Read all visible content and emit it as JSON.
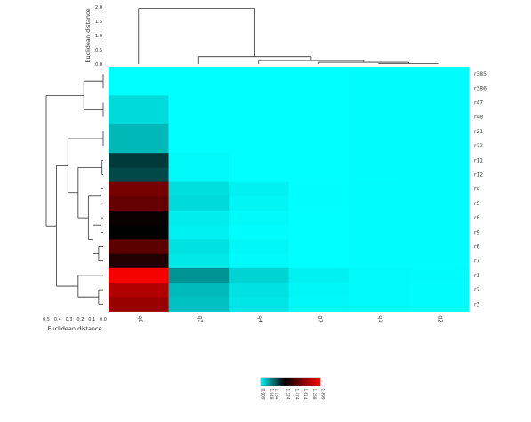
{
  "chart_data": {
    "type": "heatmap",
    "rows": [
      "r385",
      "r386",
      "r47",
      "r48",
      "r21",
      "r22",
      "r11",
      "r12",
      "r4",
      "r5",
      "r8",
      "r9",
      "r6",
      "r7",
      "r1",
      "r2",
      "r3"
    ],
    "columns": [
      "q8",
      "q3",
      "q4",
      "q7",
      "q1",
      "q2"
    ],
    "values": [
      [
        0.901,
        0.901,
        0.905,
        0.905,
        0.911,
        0.911
      ],
      [
        0.901,
        0.901,
        0.905,
        0.905,
        0.911,
        0.911
      ],
      [
        0.955,
        0.901,
        0.905,
        0.905,
        0.911,
        0.911
      ],
      [
        0.955,
        0.901,
        0.905,
        0.905,
        0.911,
        0.911
      ],
      [
        1.005,
        0.901,
        0.905,
        0.905,
        0.911,
        0.911
      ],
      [
        1.005,
        0.901,
        0.905,
        0.905,
        0.911,
        0.911
      ],
      [
        1.205,
        0.915,
        0.908,
        0.906,
        0.911,
        0.911
      ],
      [
        1.18,
        0.915,
        0.908,
        0.906,
        0.911,
        0.911
      ],
      [
        1.58,
        0.95,
        0.925,
        0.91,
        0.912,
        0.911
      ],
      [
        1.54,
        0.955,
        0.92,
        0.91,
        0.912,
        0.911
      ],
      [
        1.33,
        0.93,
        0.915,
        0.908,
        0.912,
        0.911
      ],
      [
        1.3,
        0.925,
        0.912,
        0.908,
        0.912,
        0.911
      ],
      [
        1.52,
        0.945,
        0.918,
        0.909,
        0.912,
        0.911
      ],
      [
        1.38,
        0.935,
        0.915,
        0.909,
        0.912,
        0.911
      ],
      [
        1.88,
        1.06,
        0.965,
        0.925,
        0.915,
        0.913
      ],
      [
        1.72,
        1.0,
        0.945,
        0.918,
        0.914,
        0.912
      ],
      [
        1.66,
        0.99,
        0.94,
        0.916,
        0.914,
        0.912
      ]
    ],
    "color_scale": {
      "low": "#00ffff",
      "mid": "#000000",
      "high": "#ff0000",
      "range": [
        0.909,
        1.899
      ],
      "breaks": [
        0.909,
        1.048,
        1.134,
        1.324,
        1.474,
        1.614,
        1.758,
        1.899
      ],
      "key_labels": [
        "0.909",
        "1.048",
        "1.134",
        "1.324",
        "1.474",
        "1.614",
        "1.758",
        "1.899"
      ]
    },
    "column_dendrogram": {
      "axis_title": "Euclidean distance",
      "axis_ticks": [
        "0.0",
        "0.5",
        "1.0",
        "1.5",
        "2.0"
      ],
      "ylim": [
        0,
        2
      ],
      "merges": [
        {
          "a": "q1",
          "b": "q2",
          "height": 0.02
        },
        {
          "a": "q7",
          "b": "(q1,q2)",
          "height": 0.06
        },
        {
          "a": "q4",
          "b": "(q7,q1,q2)",
          "height": 0.12
        },
        {
          "a": "q3",
          "b": "(q4,q7,q1,q2)",
          "height": 0.26
        },
        {
          "a": "q8",
          "b": "(q3,q4,q7,q1,q2)",
          "height": 1.95
        }
      ]
    },
    "row_dendrogram": {
      "axis_title": "Euclidean distance",
      "axis_ticks": [
        "0.5",
        "0.4",
        "0.3",
        "0.2",
        "0.1",
        "0.0"
      ],
      "xlim": [
        0.5,
        0
      ],
      "merges": [
        {
          "a": "r385",
          "b": "r386",
          "height": 0.0
        },
        {
          "a": "r47",
          "b": "r48",
          "height": 0.0
        },
        {
          "a": "r21",
          "b": "r22",
          "height": 0.0
        },
        {
          "a": "r11",
          "b": "r12",
          "height": 0.01
        },
        {
          "a": "r4",
          "b": "r5",
          "height": 0.02
        },
        {
          "a": "r8",
          "b": "r9",
          "height": 0.02
        },
        {
          "a": "r6",
          "b": "r7",
          "height": 0.04
        },
        {
          "a": "r2",
          "b": "r3",
          "height": 0.04
        },
        {
          "a": "(r385,r386)",
          "b": "(r47,r48)",
          "height": 0.17
        },
        {
          "a": "(r8,r9)",
          "b": "(r6,r7)",
          "height": 0.09
        },
        {
          "a": "(r4,r5)",
          "b": "(r8,r9,r6,r7)",
          "height": 0.13
        },
        {
          "a": "(r11,r12)",
          "b": "(r4,r5,r8,r9,r6,r7)",
          "height": 0.22
        },
        {
          "a": "r1",
          "b": "(r2,r3)",
          "height": 0.22
        },
        {
          "a": "(r21,r22)",
          "b": "(r11..r7)",
          "height": 0.31
        },
        {
          "a": "(r21..r7)",
          "b": "(r1,r2,r3)",
          "height": 0.41
        },
        {
          "a": "(r385,r386,r47,r48)",
          "b": "(r21..r3)",
          "height": 0.5
        }
      ]
    }
  }
}
